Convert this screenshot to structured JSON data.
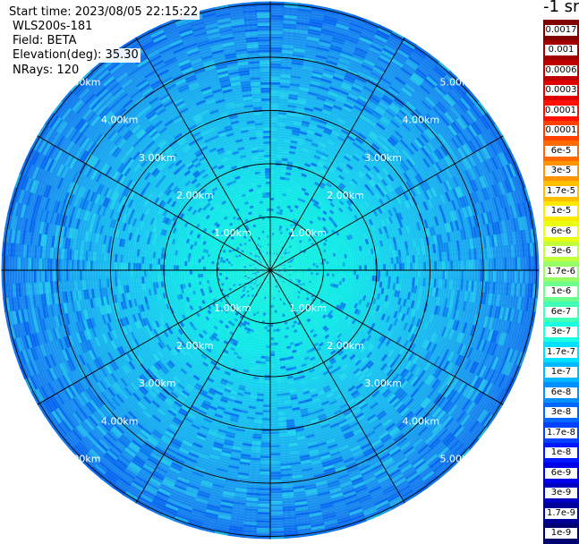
{
  "info": {
    "start_time": "Start time: 2023/08/05 22:15:22",
    "device": "WLS200s-181",
    "field": "Field: BETA",
    "elevation": "Elevation(deg): 35.30",
    "nrays": "NRays: 120"
  },
  "colorbar": {
    "title": "-1 sr",
    "entries": [
      {
        "label": "0.0017",
        "color": "#800000"
      },
      {
        "label": "0.001",
        "color": "#a00000"
      },
      {
        "label": "0.0006",
        "color": "#c00000"
      },
      {
        "label": "0.0003",
        "color": "#e00000"
      },
      {
        "label": "0.00017",
        "color": "#ff1000"
      },
      {
        "label": "0.0001",
        "color": "#ff4000"
      },
      {
        "label": "6e-5",
        "color": "#ff6a00"
      },
      {
        "label": "3e-5",
        "color": "#ff9400"
      },
      {
        "label": "1.7e-5",
        "color": "#ffbe00"
      },
      {
        "label": "1e-5",
        "color": "#ffe800"
      },
      {
        "label": "6e-6",
        "color": "#eaff10"
      },
      {
        "label": "3e-6",
        "color": "#c0ff3a"
      },
      {
        "label": "1.7e-6",
        "color": "#96ff64"
      },
      {
        "label": "1e-6",
        "color": "#6cff8e"
      },
      {
        "label": "6e-7",
        "color": "#42ffb8"
      },
      {
        "label": "3e-7",
        "color": "#18ffe2"
      },
      {
        "label": "1.7e-7",
        "color": "#00e0ff"
      },
      {
        "label": "1e-7",
        "color": "#00b8ff"
      },
      {
        "label": "6e-8",
        "color": "#0090ff"
      },
      {
        "label": "3e-8",
        "color": "#0068ff"
      },
      {
        "label": "1.7e-8",
        "color": "#0040ff"
      },
      {
        "label": "1e-8",
        "color": "#0018ff"
      },
      {
        "label": "6e-9",
        "color": "#0000e8"
      },
      {
        "label": "3e-9",
        "color": "#0000c0"
      },
      {
        "label": "1.7e-9",
        "color": "#000098"
      },
      {
        "label": "1e-9",
        "color": "#000070"
      }
    ]
  },
  "chart_data": {
    "type": "heatmap",
    "projection": "polar",
    "field": "BETA",
    "nrays": 120,
    "range_rings_km": [
      1,
      2,
      3,
      4,
      5
    ],
    "ring_labels": [
      "1.00km",
      "2.00km",
      "3.00km",
      "4.00km",
      "5.00km"
    ],
    "max_range_km": 5.05,
    "spokes": 12,
    "colorscale": "jet",
    "range_profile": [
      {
        "range_km": 0.5,
        "dominant_color": "#10f0e0",
        "value_approx": "3e-7"
      },
      {
        "range_km": 1.5,
        "dominant_color": "#10e8e8",
        "value_approx": "3e-7"
      },
      {
        "range_km": 2.5,
        "dominant_color": "#18c8f0",
        "value_approx": "1.7e-7"
      },
      {
        "range_km": 3.5,
        "dominant_color": "#18b0f0",
        "value_approx": "1e-7"
      },
      {
        "range_km": 4.5,
        "dominant_color": "#1890f0",
        "value_approx": "6e-8"
      },
      {
        "range_km": 5.0,
        "dominant_color": "#1478ee",
        "value_approx": "3e-8"
      }
    ]
  }
}
